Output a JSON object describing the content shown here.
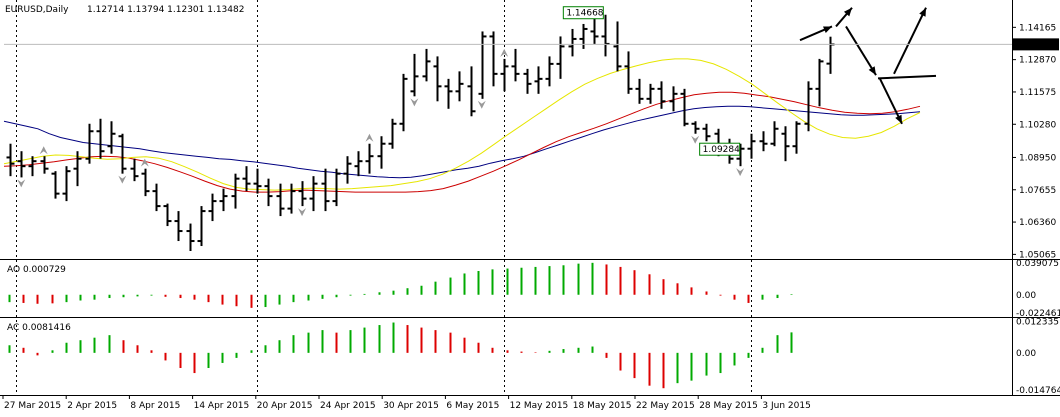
{
  "header": {
    "symbol": "EURUSD,Daily",
    "ohlc": "1.12714 1.13794 1.12301 1.13482",
    "ao_label": "AO 0.000729",
    "ac_label": "AC 0.0081416"
  },
  "chart_data": [
    {
      "type": "ohlc",
      "title": "EURUSD,Daily",
      "ylim": [
        1.05,
        1.151
      ],
      "y_ticks": [
        1.14165,
        1.1287,
        1.11575,
        1.1028,
        1.0895,
        1.07655,
        1.0636,
        1.05065
      ],
      "y_tick_labels": [
        "1.14165",
        "1.12870",
        "1.11575",
        "1.10280",
        "1.08950",
        "1.07655",
        "1.06360",
        "1.05065"
      ],
      "current_price": "1.13482",
      "x_tick_labels": [
        "27 Mar 2015",
        "2 Apr 2015",
        "8 Apr 2015",
        "14 Apr 2015",
        "20 Apr 2015",
        "24 Apr 2015",
        "30 Apr 2015",
        "6 May 2015",
        "12 May 2015",
        "18 May 2015",
        "22 May 2015",
        "28 May 2015",
        "3 Jun 2015"
      ],
      "annotations": [
        {
          "text": "1.14668"
        },
        {
          "text": "1.09284"
        }
      ],
      "bars": [
        {
          "o": 1.0895,
          "h": 1.095,
          "l": 1.082,
          "c": 1.087
        },
        {
          "o": 1.088,
          "h": 1.092,
          "l": 1.0815,
          "c": 1.086
        },
        {
          "o": 1.086,
          "h": 1.09,
          "l": 1.082,
          "c": 1.088
        },
        {
          "o": 1.088,
          "h": 1.09,
          "l": 1.083,
          "c": 1.085
        },
        {
          "o": 1.083,
          "h": 1.084,
          "l": 1.073,
          "c": 1.075
        },
        {
          "o": 1.075,
          "h": 1.086,
          "l": 1.072,
          "c": 1.084
        },
        {
          "o": 1.085,
          "h": 1.092,
          "l": 1.078,
          "c": 1.089
        },
        {
          "o": 1.089,
          "h": 1.103,
          "l": 1.087,
          "c": 1.1
        },
        {
          "o": 1.1,
          "h": 1.105,
          "l": 1.089,
          "c": 1.092
        },
        {
          "o": 1.094,
          "h": 1.104,
          "l": 1.091,
          "c": 1.099
        },
        {
          "o": 1.098,
          "h": 1.099,
          "l": 1.083,
          "c": 1.085
        },
        {
          "o": 1.085,
          "h": 1.089,
          "l": 1.08,
          "c": 1.082
        },
        {
          "o": 1.083,
          "h": 1.085,
          "l": 1.074,
          "c": 1.076
        },
        {
          "o": 1.076,
          "h": 1.079,
          "l": 1.068,
          "c": 1.07
        },
        {
          "o": 1.07,
          "h": 1.071,
          "l": 1.062,
          "c": 1.064
        },
        {
          "o": 1.064,
          "h": 1.068,
          "l": 1.056,
          "c": 1.06
        },
        {
          "o": 1.06,
          "h": 1.063,
          "l": 1.052,
          "c": 1.056
        },
        {
          "o": 1.056,
          "h": 1.07,
          "l": 1.054,
          "c": 1.068
        },
        {
          "o": 1.068,
          "h": 1.075,
          "l": 1.064,
          "c": 1.072
        },
        {
          "o": 1.072,
          "h": 1.077,
          "l": 1.068,
          "c": 1.074
        },
        {
          "o": 1.074,
          "h": 1.083,
          "l": 1.069,
          "c": 1.081
        },
        {
          "o": 1.081,
          "h": 1.086,
          "l": 1.076,
          "c": 1.079
        },
        {
          "o": 1.079,
          "h": 1.085,
          "l": 1.075,
          "c": 1.078
        },
        {
          "o": 1.078,
          "h": 1.081,
          "l": 1.07,
          "c": 1.074
        },
        {
          "o": 1.074,
          "h": 1.079,
          "l": 1.066,
          "c": 1.069
        },
        {
          "o": 1.069,
          "h": 1.079,
          "l": 1.067,
          "c": 1.076
        },
        {
          "o": 1.076,
          "h": 1.08,
          "l": 1.07,
          "c": 1.073
        },
        {
          "o": 1.073,
          "h": 1.082,
          "l": 1.068,
          "c": 1.079
        },
        {
          "o": 1.079,
          "h": 1.085,
          "l": 1.068,
          "c": 1.072
        },
        {
          "o": 1.072,
          "h": 1.085,
          "l": 1.07,
          "c": 1.083
        },
        {
          "o": 1.083,
          "h": 1.09,
          "l": 1.079,
          "c": 1.087
        },
        {
          "o": 1.086,
          "h": 1.092,
          "l": 1.082,
          "c": 1.088
        },
        {
          "o": 1.088,
          "h": 1.095,
          "l": 1.083,
          "c": 1.09
        },
        {
          "o": 1.09,
          "h": 1.098,
          "l": 1.085,
          "c": 1.095
        },
        {
          "o": 1.095,
          "h": 1.105,
          "l": 1.093,
          "c": 1.103
        },
        {
          "o": 1.103,
          "h": 1.123,
          "l": 1.1,
          "c": 1.121
        },
        {
          "o": 1.116,
          "h": 1.131,
          "l": 1.114,
          "c": 1.122
        },
        {
          "o": 1.122,
          "h": 1.133,
          "l": 1.12,
          "c": 1.128
        },
        {
          "o": 1.126,
          "h": 1.13,
          "l": 1.112,
          "c": 1.118
        },
        {
          "o": 1.118,
          "h": 1.121,
          "l": 1.109,
          "c": 1.116
        },
        {
          "o": 1.116,
          "h": 1.124,
          "l": 1.112,
          "c": 1.119
        },
        {
          "o": 1.118,
          "h": 1.126,
          "l": 1.106,
          "c": 1.108
        },
        {
          "o": 1.115,
          "h": 1.14,
          "l": 1.113,
          "c": 1.138
        },
        {
          "o": 1.138,
          "h": 1.14,
          "l": 1.118,
          "c": 1.123
        },
        {
          "o": 1.123,
          "h": 1.129,
          "l": 1.116,
          "c": 1.126
        },
        {
          "o": 1.126,
          "h": 1.133,
          "l": 1.12,
          "c": 1.123
        },
        {
          "o": 1.123,
          "h": 1.125,
          "l": 1.115,
          "c": 1.119
        },
        {
          "o": 1.12,
          "h": 1.126,
          "l": 1.115,
          "c": 1.121
        },
        {
          "o": 1.121,
          "h": 1.13,
          "l": 1.118,
          "c": 1.127
        },
        {
          "o": 1.127,
          "h": 1.138,
          "l": 1.121,
          "c": 1.134
        },
        {
          "o": 1.134,
          "h": 1.141,
          "l": 1.13,
          "c": 1.137
        },
        {
          "o": 1.137,
          "h": 1.143,
          "l": 1.133,
          "c": 1.141
        },
        {
          "o": 1.14,
          "h": 1.145,
          "l": 1.135,
          "c": 1.138
        },
        {
          "o": 1.138,
          "h": 1.1467,
          "l": 1.13,
          "c": 1.135
        },
        {
          "o": 1.134,
          "h": 1.144,
          "l": 1.124,
          "c": 1.126
        },
        {
          "o": 1.126,
          "h": 1.132,
          "l": 1.115,
          "c": 1.117
        },
        {
          "o": 1.117,
          "h": 1.121,
          "l": 1.111,
          "c": 1.113
        },
        {
          "o": 1.113,
          "h": 1.119,
          "l": 1.111,
          "c": 1.117
        },
        {
          "o": 1.117,
          "h": 1.12,
          "l": 1.109,
          "c": 1.112
        },
        {
          "o": 1.112,
          "h": 1.118,
          "l": 1.108,
          "c": 1.115
        },
        {
          "o": 1.115,
          "h": 1.117,
          "l": 1.102,
          "c": 1.103
        },
        {
          "o": 1.103,
          "h": 1.104,
          "l": 1.099,
          "c": 1.101
        },
        {
          "o": 1.101,
          "h": 1.103,
          "l": 1.096,
          "c": 1.098
        },
        {
          "o": 1.099,
          "h": 1.101,
          "l": 1.09,
          "c": 1.093
        },
        {
          "o": 1.093,
          "h": 1.097,
          "l": 1.087,
          "c": 1.089
        },
        {
          "o": 1.089,
          "h": 1.095,
          "l": 1.086,
          "c": 1.093
        },
        {
          "o": 1.093,
          "h": 1.099,
          "l": 1.089,
          "c": 1.096
        },
        {
          "o": 1.096,
          "h": 1.1,
          "l": 1.092,
          "c": 1.095
        },
        {
          "o": 1.095,
          "h": 1.104,
          "l": 1.094,
          "c": 1.101
        },
        {
          "o": 1.099,
          "h": 1.102,
          "l": 1.088,
          "c": 1.094
        },
        {
          "o": 1.094,
          "h": 1.104,
          "l": 1.091,
          "c": 1.103
        },
        {
          "o": 1.103,
          "h": 1.12,
          "l": 1.1,
          "c": 1.117
        },
        {
          "o": 1.117,
          "h": 1.129,
          "l": 1.11,
          "c": 1.128
        },
        {
          "o": 1.1271,
          "h": 1.1379,
          "l": 1.123,
          "c": 1.1348
        }
      ],
      "series": [
        {
          "color": "#000080",
          "values": [
            1.104,
            1.103,
            1.102,
            1.101,
            1.099,
            1.0975,
            1.0965,
            1.0955,
            1.095,
            1.0945,
            1.094,
            1.0935,
            1.093,
            1.0922,
            1.0915,
            1.091,
            1.0905,
            1.09,
            1.0895,
            1.089,
            1.0887,
            1.0882,
            1.0878,
            1.0872,
            1.0866,
            1.086,
            1.0852,
            1.0846,
            1.084,
            1.0836,
            1.083,
            1.0826,
            1.0822,
            1.0818,
            1.0815,
            1.0814,
            1.0816,
            1.0822,
            1.083,
            1.0838,
            1.0846,
            1.0852,
            1.086,
            1.0872,
            1.0882,
            1.089,
            1.09,
            1.0915,
            1.093,
            1.0945,
            1.096,
            1.0975,
            1.099,
            1.1005,
            1.1018,
            1.103,
            1.1042,
            1.1052,
            1.1062,
            1.1072,
            1.1082,
            1.109,
            1.1095,
            1.1098,
            1.11,
            1.11,
            1.1098,
            1.1094,
            1.109,
            1.1086,
            1.1082,
            1.1078,
            1.1074,
            1.107,
            1.1066,
            1.1064,
            1.1064,
            1.1066,
            1.1068,
            1.107,
            1.1074,
            1.1078
          ]
        },
        {
          "color": "#cc0000",
          "values": [
            1.086,
            1.0862,
            1.0866,
            1.0872,
            1.0878,
            1.0885,
            1.0892,
            1.0898,
            1.09,
            1.0898,
            1.0892,
            1.0882,
            1.087,
            1.0855,
            1.0838,
            1.082,
            1.08,
            1.0782,
            1.0768,
            1.076,
            1.0756,
            1.0756,
            1.0758,
            1.0762,
            1.0764,
            1.0762,
            1.076,
            1.0758,
            1.0756,
            1.0756,
            1.0756,
            1.0756,
            1.0756,
            1.0758,
            1.0762,
            1.077,
            1.0784,
            1.08,
            1.082,
            1.084,
            1.0862,
            1.0885,
            1.091,
            1.0935,
            1.0958,
            1.0978,
            1.0995,
            1.1012,
            1.103,
            1.105,
            1.107,
            1.109,
            1.1108,
            1.1122,
            1.1135,
            1.1146,
            1.1152,
            1.1156,
            1.1156,
            1.1152,
            1.1145,
            1.1138,
            1.1128,
            1.1118,
            1.1106,
            1.1094,
            1.1084,
            1.1076,
            1.1072,
            1.107,
            1.1072,
            1.1078,
            1.1088,
            1.11
          ]
        },
        {
          "color": "#e6e600",
          "values": [
            1.087,
            1.088,
            1.089,
            1.09,
            1.0905,
            1.0903,
            1.0898,
            1.0892,
            1.0888,
            1.089,
            1.0895,
            1.0898,
            1.0892,
            1.0878,
            1.0858,
            1.0836,
            1.0812,
            1.079,
            1.0775,
            1.0768,
            1.0766,
            1.0764,
            1.0766,
            1.077,
            1.0772,
            1.077,
            1.0768,
            1.077,
            1.0774,
            1.0778,
            1.0782,
            1.079,
            1.0798,
            1.081,
            1.0828,
            1.0852,
            1.088,
            1.0912,
            1.0948,
            1.0985,
            1.102,
            1.1055,
            1.109,
            1.1125,
            1.1158,
            1.1188,
            1.1212,
            1.1232,
            1.1248,
            1.1262,
            1.1275,
            1.1285,
            1.129,
            1.129,
            1.1284,
            1.127,
            1.1248,
            1.122,
            1.1188,
            1.115,
            1.1112,
            1.1075,
            1.104,
            1.101,
            1.0988,
            1.0975,
            1.0972,
            1.098,
            1.0995,
            1.102,
            1.105,
            1.1075
          ]
        }
      ]
    },
    {
      "type": "bar",
      "title": "AO 0.000729",
      "ylim": [
        -0.0235,
        0.04
      ],
      "y_tick_labels": [
        "0.039075",
        "0.00",
        "-0.022461"
      ],
      "y_ticks": [
        0.039075,
        0.0,
        -0.022461
      ],
      "values": [
        -0.009,
        -0.01,
        -0.011,
        -0.0105,
        -0.009,
        -0.007,
        -0.006,
        -0.004,
        -0.003,
        -0.002,
        -0.001,
        -0.0025,
        -0.004,
        -0.006,
        -0.009,
        -0.012,
        -0.014,
        -0.016,
        -0.015,
        -0.012,
        -0.009,
        -0.007,
        -0.005,
        -0.003,
        -0.001,
        0.001,
        0.003,
        0.005,
        0.008,
        0.011,
        0.016,
        0.021,
        0.026,
        0.029,
        0.031,
        0.032,
        0.033,
        0.034,
        0.035,
        0.036,
        0.038,
        0.039,
        0.037,
        0.034,
        0.03,
        0.025,
        0.019,
        0.014,
        0.009,
        0.004,
        -0.001,
        -0.006,
        -0.01,
        -0.006,
        -0.004,
        0.0007
      ],
      "colors": [
        "#00aa00",
        "#dd0000",
        "#dd0000",
        "#dd0000",
        "#00aa00",
        "#00aa00",
        "#00aa00",
        "#00aa00",
        "#00aa00",
        "#00aa00",
        "#00aa00",
        "#dd0000",
        "#dd0000",
        "#dd0000",
        "#dd0000",
        "#dd0000",
        "#dd0000",
        "#dd0000",
        "#00aa00",
        "#00aa00",
        "#00aa00",
        "#00aa00",
        "#00aa00",
        "#00aa00",
        "#00aa00",
        "#00aa00",
        "#00aa00",
        "#00aa00",
        "#00aa00",
        "#00aa00",
        "#00aa00",
        "#00aa00",
        "#00aa00",
        "#00aa00",
        "#00aa00",
        "#00aa00",
        "#00aa00",
        "#00aa00",
        "#00aa00",
        "#00aa00",
        "#00aa00",
        "#00aa00",
        "#dd0000",
        "#dd0000",
        "#dd0000",
        "#dd0000",
        "#dd0000",
        "#dd0000",
        "#dd0000",
        "#dd0000",
        "#dd0000",
        "#dd0000",
        "#dd0000",
        "#00aa00",
        "#00aa00",
        "#00aa00"
      ]
    },
    {
      "type": "bar",
      "title": "AC 0.0081416",
      "ylim": [
        -0.0155,
        0.013
      ],
      "y_tick_labels": [
        "0.012335",
        "0.00",
        "-0.014764"
      ],
      "y_ticks": [
        0.012335,
        0.0,
        -0.014764
      ],
      "values": [
        0.003,
        0.002,
        -0.001,
        0.001,
        0.004,
        0.005,
        0.006,
        0.007,
        0.005,
        0.003,
        0.001,
        -0.003,
        -0.006,
        -0.008,
        -0.006,
        -0.004,
        -0.002,
        0.001,
        0.003,
        0.005,
        0.007,
        0.008,
        0.009,
        0.008,
        0.009,
        0.01,
        0.011,
        0.012,
        0.011,
        0.01,
        0.009,
        0.008,
        0.006,
        0.004,
        0.002,
        0.001,
        0.0005,
        0.0002,
        0.0008,
        0.0015,
        0.002,
        0.0025,
        -0.002,
        -0.007,
        -0.01,
        -0.013,
        -0.014,
        -0.012,
        -0.011,
        -0.009,
        -0.008,
        -0.005,
        -0.002,
        0.002,
        0.007,
        0.0081
      ],
      "colors": [
        "#00aa00",
        "#dd0000",
        "#dd0000",
        "#00aa00",
        "#00aa00",
        "#00aa00",
        "#00aa00",
        "#00aa00",
        "#dd0000",
        "#dd0000",
        "#dd0000",
        "#dd0000",
        "#dd0000",
        "#dd0000",
        "#00aa00",
        "#00aa00",
        "#00aa00",
        "#00aa00",
        "#00aa00",
        "#00aa00",
        "#00aa00",
        "#00aa00",
        "#00aa00",
        "#dd0000",
        "#00aa00",
        "#00aa00",
        "#00aa00",
        "#00aa00",
        "#dd0000",
        "#dd0000",
        "#dd0000",
        "#dd0000",
        "#dd0000",
        "#dd0000",
        "#dd0000",
        "#dd0000",
        "#dd0000",
        "#dd0000",
        "#00aa00",
        "#00aa00",
        "#00aa00",
        "#00aa00",
        "#dd0000",
        "#dd0000",
        "#dd0000",
        "#dd0000",
        "#dd0000",
        "#00aa00",
        "#00aa00",
        "#00aa00",
        "#00aa00",
        "#00aa00",
        "#00aa00",
        "#00aa00",
        "#00aa00",
        "#00aa00"
      ]
    }
  ]
}
